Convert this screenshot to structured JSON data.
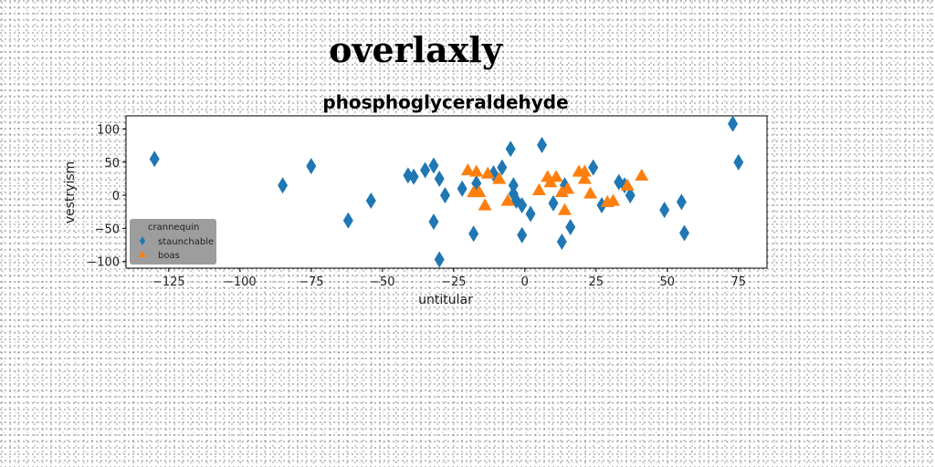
{
  "chart_data": {
    "type": "scatter",
    "suptitle": "overlaxly",
    "title": "phosphoglyceraldehyde",
    "xlabel": "untitular",
    "ylabel": "vestryism",
    "xlim": [
      -140,
      85
    ],
    "ylim": [
      -110,
      120
    ],
    "xticks": [
      -125,
      -100,
      -75,
      -50,
      -25,
      0,
      25,
      50,
      75
    ],
    "yticks": [
      -100,
      -50,
      0,
      50,
      100
    ],
    "x_tick_labels": [
      "−125",
      "−100",
      "−75",
      "−50",
      "−25",
      "0",
      "25",
      "50",
      "75"
    ],
    "y_tick_labels": [
      "−100",
      "−50",
      "0",
      "50",
      "100"
    ],
    "grid": false,
    "legend": {
      "title": "crannequin",
      "position": "lower-left"
    },
    "series": [
      {
        "name": "staunchable",
        "marker": "thin-diamond",
        "color": "#1f77b4",
        "points": [
          [
            -130,
            55
          ],
          [
            -85,
            15
          ],
          [
            -75,
            44
          ],
          [
            -62,
            -38
          ],
          [
            -54,
            -8
          ],
          [
            -41,
            30
          ],
          [
            -39,
            28
          ],
          [
            -35,
            38
          ],
          [
            -32,
            45
          ],
          [
            -32,
            -40
          ],
          [
            -30,
            25
          ],
          [
            -30,
            -97
          ],
          [
            -28,
            0
          ],
          [
            -22,
            10
          ],
          [
            -18,
            -58
          ],
          [
            -17,
            18
          ],
          [
            -11,
            33
          ],
          [
            -8,
            42
          ],
          [
            -5,
            70
          ],
          [
            -4,
            15
          ],
          [
            -4,
            2
          ],
          [
            -3,
            -8
          ],
          [
            -1,
            -15
          ],
          [
            -1,
            -60
          ],
          [
            2,
            -28
          ],
          [
            6,
            76
          ],
          [
            10,
            -12
          ],
          [
            13,
            -70
          ],
          [
            14,
            15
          ],
          [
            16,
            -48
          ],
          [
            24,
            42
          ],
          [
            27,
            -15
          ],
          [
            33,
            20
          ],
          [
            35,
            15
          ],
          [
            37,
            0
          ],
          [
            49,
            -22
          ],
          [
            55,
            -10
          ],
          [
            56,
            -57
          ],
          [
            73,
            108
          ],
          [
            75,
            50
          ]
        ]
      },
      {
        "name": "boas",
        "marker": "triangle-up",
        "color": "#ff7f0e",
        "points": [
          [
            -20,
            38
          ],
          [
            -17,
            36
          ],
          [
            -18,
            5
          ],
          [
            -16,
            5
          ],
          [
            -14,
            -15
          ],
          [
            -13,
            33
          ],
          [
            -9,
            25
          ],
          [
            -6,
            -8
          ],
          [
            5,
            8
          ],
          [
            8,
            28
          ],
          [
            9,
            20
          ],
          [
            11,
            28
          ],
          [
            13,
            5
          ],
          [
            15,
            10
          ],
          [
            14,
            -22
          ],
          [
            19,
            36
          ],
          [
            21,
            36
          ],
          [
            21,
            25
          ],
          [
            23,
            3
          ],
          [
            29,
            -10
          ],
          [
            31,
            -8
          ],
          [
            36,
            15
          ],
          [
            41,
            30
          ]
        ]
      }
    ]
  }
}
